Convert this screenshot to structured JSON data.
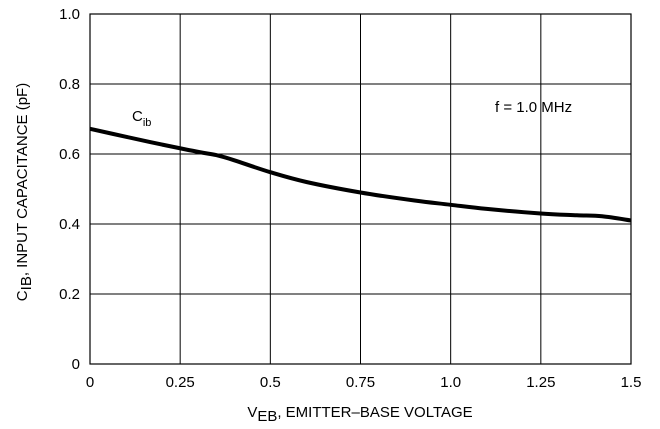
{
  "chart_data": {
    "type": "line",
    "title": "",
    "xlabel": {
      "main": "V",
      "sub": "EB",
      "rest": ", EMITTER–BASE VOLTAGE"
    },
    "ylabel": {
      "main": "C",
      "sub": "IB",
      "rest": ", INPUT CAPACITANCE (pF)"
    },
    "xlim": [
      0,
      1.5
    ],
    "ylim": [
      0,
      1.0
    ],
    "x_ticks": [
      0,
      0.25,
      0.5,
      0.75,
      1.0,
      1.25,
      1.5
    ],
    "x_tick_labels": [
      "0",
      "0.25",
      "0.5",
      "0.75",
      "1.0",
      "1.25",
      "1.5"
    ],
    "y_ticks": [
      0,
      0.2,
      0.4,
      0.6,
      0.8,
      1.0
    ],
    "y_tick_labels": [
      "0",
      "0.2",
      "0.4",
      "0.6",
      "0.8",
      "1.0"
    ],
    "grid": true,
    "series": [
      {
        "name": {
          "main": "C",
          "sub": "ib"
        },
        "x": [
          0,
          0.1,
          0.2,
          0.3,
          0.35,
          0.4,
          0.5,
          0.6,
          0.75,
          0.9,
          1.0,
          1.1,
          1.25,
          1.35,
          1.42,
          1.5
        ],
        "y": [
          0.672,
          0.649,
          0.627,
          0.606,
          0.597,
          0.582,
          0.548,
          0.52,
          0.49,
          0.467,
          0.455,
          0.443,
          0.43,
          0.425,
          0.422,
          0.41
        ]
      }
    ],
    "annotations": [
      {
        "text": "f = 1.0 MHz"
      }
    ]
  }
}
